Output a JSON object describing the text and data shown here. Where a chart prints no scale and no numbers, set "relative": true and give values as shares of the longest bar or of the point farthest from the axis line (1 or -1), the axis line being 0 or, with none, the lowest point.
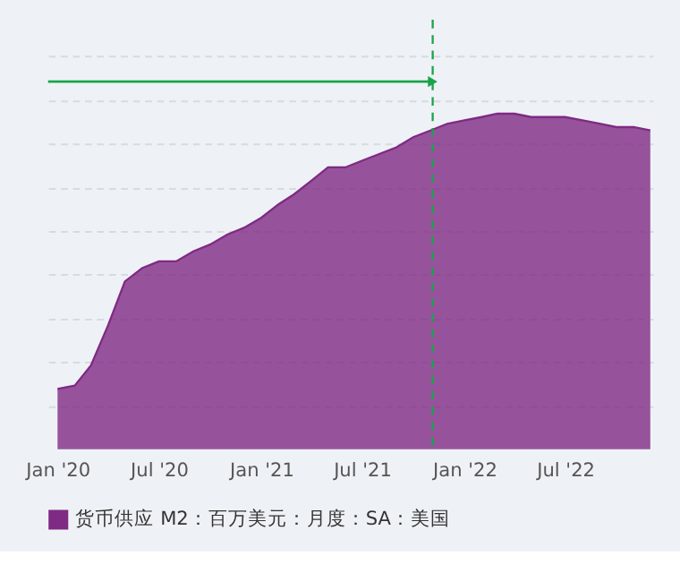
{
  "chart_data": {
    "type": "area",
    "relative": true,
    "x": [
      "2020-01",
      "2020-02",
      "2020-03",
      "2020-04",
      "2020-05",
      "2020-06",
      "2020-07",
      "2020-08",
      "2020-09",
      "2020-10",
      "2020-11",
      "2020-12",
      "2021-01",
      "2021-02",
      "2021-03",
      "2021-04",
      "2021-05",
      "2021-06",
      "2021-07",
      "2021-08",
      "2021-09",
      "2021-10",
      "2021-11",
      "2021-12",
      "2022-01",
      "2022-02",
      "2022-03",
      "2022-04",
      "2022-05",
      "2022-06",
      "2022-07",
      "2022-08",
      "2022-09",
      "2022-10",
      "2022-11",
      "2022-12"
    ],
    "series": [
      {
        "name": "货币供应 M2：百万美元：月度：SA：美国",
        "color": "#7f2a84",
        "values": [
          0.18,
          0.19,
          0.25,
          0.37,
          0.5,
          0.54,
          0.56,
          0.56,
          0.59,
          0.61,
          0.64,
          0.66,
          0.69,
          0.73,
          0.76,
          0.8,
          0.84,
          0.84,
          0.86,
          0.88,
          0.9,
          0.93,
          0.95,
          0.97,
          0.98,
          0.99,
          1.0,
          1.0,
          0.99,
          0.99,
          0.99,
          0.98,
          0.97,
          0.96,
          0.96,
          0.95
        ]
      }
    ],
    "xlim": [
      "2019-12-15",
      "2022-12-05"
    ],
    "xticks": [
      {
        "value": "2020-01-01",
        "label": "Jan '20"
      },
      {
        "value": "2020-07-01",
        "label": "Jul '20"
      },
      {
        "value": "2021-01-01",
        "label": "Jan '21"
      },
      {
        "value": "2021-07-01",
        "label": "Jul '21"
      },
      {
        "value": "2022-01-01",
        "label": "Jan '22"
      },
      {
        "value": "2022-07-01",
        "label": "Jul '22"
      }
    ],
    "ref_lines": [
      {
        "axis": "x",
        "value": "2021-11-05",
        "color": "#1aa34a",
        "line_style": "dashed"
      }
    ],
    "grid": "y",
    "legend": "bottom"
  }
}
